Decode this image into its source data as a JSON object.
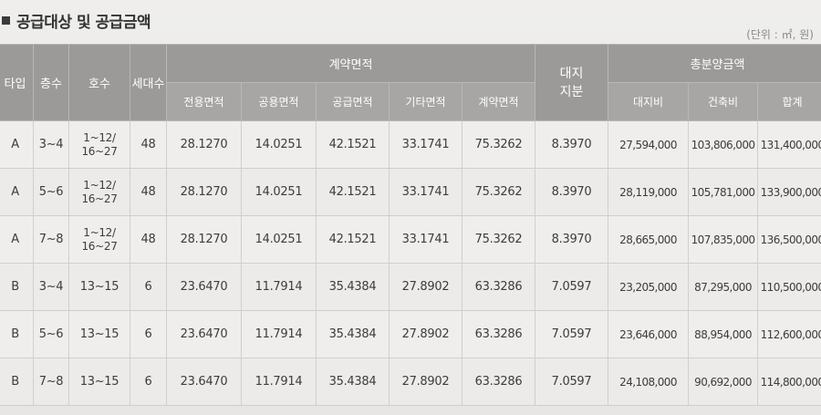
{
  "section": {
    "title": "공급대상 및 공급금액",
    "unit_note": "(단위 : ㎡, 원)"
  },
  "table": {
    "headers": {
      "type": "타입",
      "floor": "층수",
      "unit": "호수",
      "households": "세대수",
      "contract_area": "계약면적",
      "land_share": "대지\n지분",
      "total_price": "총분양금액"
    },
    "sub_headers": {
      "exclusive": "전용면적",
      "common": "공용면적",
      "supply": "공급면적",
      "other": "기타면적",
      "contract": "계약면적",
      "land_cost": "대지비",
      "build_cost": "건축비",
      "sum": "합계"
    },
    "rows": [
      {
        "type": "A",
        "floor": "3~4",
        "unit_line1": "1~12/",
        "unit_line2": "16~27",
        "households": "48",
        "exclusive": "28.1270",
        "common": "14.0251",
        "supply": "42.1521",
        "other": "33.1741",
        "contract": "75.3262",
        "land_share": "8.3970",
        "land_cost": "27,594,000",
        "build_cost": "103,806,000",
        "sum": "131,400,000"
      },
      {
        "type": "A",
        "floor": "5~6",
        "unit_line1": "1~12/",
        "unit_line2": "16~27",
        "households": "48",
        "exclusive": "28.1270",
        "common": "14.0251",
        "supply": "42.1521",
        "other": "33.1741",
        "contract": "75.3262",
        "land_share": "8.3970",
        "land_cost": "28,119,000",
        "build_cost": "105,781,000",
        "sum": "133,900,000"
      },
      {
        "type": "A",
        "floor": "7~8",
        "unit_line1": "1~12/",
        "unit_line2": "16~27",
        "households": "48",
        "exclusive": "28.1270",
        "common": "14.0251",
        "supply": "42.1521",
        "other": "33.1741",
        "contract": "75.3262",
        "land_share": "8.3970",
        "land_cost": "28,665,000",
        "build_cost": "107,835,000",
        "sum": "136,500,000"
      },
      {
        "type": "B",
        "floor": "3~4",
        "unit_line1": "13~15",
        "unit_line2": "",
        "households": "6",
        "exclusive": "23.6470",
        "common": "11.7914",
        "supply": "35.4384",
        "other": "27.8902",
        "contract": "63.3286",
        "land_share": "7.0597",
        "land_cost": "23,205,000",
        "build_cost": "87,295,000",
        "sum": "110,500,000"
      },
      {
        "type": "B",
        "floor": "5~6",
        "unit_line1": "13~15",
        "unit_line2": "",
        "households": "6",
        "exclusive": "23.6470",
        "common": "11.7914",
        "supply": "35.4384",
        "other": "27.8902",
        "contract": "63.3286",
        "land_share": "7.0597",
        "land_cost": "23,646,000",
        "build_cost": "88,954,000",
        "sum": "112,600,000"
      },
      {
        "type": "B",
        "floor": "7~8",
        "unit_line1": "13~15",
        "unit_line2": "",
        "households": "6",
        "exclusive": "23.6470",
        "common": "11.7914",
        "supply": "35.4384",
        "other": "27.8902",
        "contract": "63.3286",
        "land_share": "7.0597",
        "land_cost": "24,108,000",
        "build_cost": "90,692,000",
        "sum": "114,800,000"
      }
    ]
  },
  "colors": {
    "header_bg": "#9b9a98",
    "header_text": "#ffffff",
    "body_bg": "#efeeec",
    "body_text": "#3c3c3c",
    "grid": "#d0cfcc"
  }
}
